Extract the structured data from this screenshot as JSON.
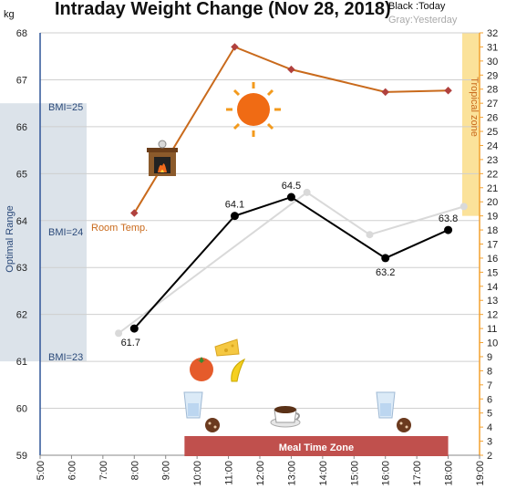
{
  "chart_data": {
    "type": "line",
    "title": "Intraday Weight Change (Nov 28, 2018)",
    "ylabel_left": "kg",
    "ylim_left": [
      59,
      68
    ],
    "yticks_left": [
      "59",
      "60",
      "61",
      "62",
      "63",
      "64",
      "65",
      "66",
      "67",
      "68"
    ],
    "ylim_right": [
      2,
      32
    ],
    "yticks_right": [
      "2",
      "3",
      "4",
      "5",
      "6",
      "7",
      "8",
      "9",
      "10",
      "11",
      "12",
      "13",
      "14",
      "15",
      "16",
      "17",
      "18",
      "19",
      "20",
      "21",
      "22",
      "23",
      "24",
      "25",
      "26",
      "27",
      "28",
      "29",
      "30",
      "31",
      "32"
    ],
    "xlim": [
      5,
      19
    ],
    "xticks": [
      "5:00",
      "6:00",
      "7:00",
      "8:00",
      "9:00",
      "10:00",
      "11:00",
      "12:00",
      "13:00",
      "14:00",
      "15:00",
      "16:00",
      "17:00",
      "18:00",
      "19:00"
    ],
    "legend": {
      "today": "Black :Today",
      "yesterday": "Gray:Yesterday"
    },
    "series": [
      {
        "name": "Today",
        "color": "#000000",
        "points": [
          {
            "x": 8.0,
            "y": 61.7,
            "label": "61.7"
          },
          {
            "x": 11.2,
            "y": 64.1,
            "label": "64.1"
          },
          {
            "x": 13.0,
            "y": 64.5,
            "label": "64.5"
          },
          {
            "x": 16.0,
            "y": 63.2,
            "label": "63.2"
          },
          {
            "x": 18.0,
            "y": 63.8,
            "label": "63.8"
          }
        ]
      },
      {
        "color": "#d9d9d9",
        "points": [
          {
            "x": 7.5,
            "y": 61.6
          },
          {
            "x": 13.5,
            "y": 64.6
          },
          {
            "x": 15.5,
            "y": 63.7
          },
          {
            "x": 18.5,
            "y": 64.3
          }
        ]
      },
      {
        "axis": "right",
        "color": "#c96a1c",
        "points": [
          {
            "x": 8.0,
            "y": 19.2
          },
          {
            "x": 11.2,
            "y": 31.0
          },
          {
            "x": 13.0,
            "y": 29.4
          },
          {
            "x": 16.0,
            "y": 27.8
          },
          {
            "x": 18.0,
            "y": 27.9
          }
        ]
      }
    ],
    "annotations": {
      "optimal_range": "Optimal Range",
      "optimal_range_kg": [
        61,
        66.5
      ],
      "bmi_25": "BMI=25",
      "bmi_24": "BMI=24",
      "bmi_23": "BMI=23",
      "tropical_zone": "Tropical zone",
      "tropical_zone_temp": [
        19,
        32
      ],
      "room_temp": "Room Temp.",
      "meal_time_zone": "Meal Time Zone",
      "meal_time_range": [
        9.6,
        18.0
      ]
    },
    "colors": {
      "today": "#000000",
      "yesterday": "#d9d9d9",
      "room_temp": "#c96a1c",
      "optimal_band": "#dce3ea",
      "tropical_band": "#fbe29a",
      "meal_bar": "#c0504d",
      "right_axis": "#f3a12f",
      "left_axis": "#2f5597"
    },
    "icons": [
      "fireplace-icon",
      "sun-icon",
      "cheese-icon",
      "tomato-icon",
      "banana-icon",
      "water-glass-icon",
      "cookies-icon",
      "coffee-cup-icon"
    ]
  }
}
